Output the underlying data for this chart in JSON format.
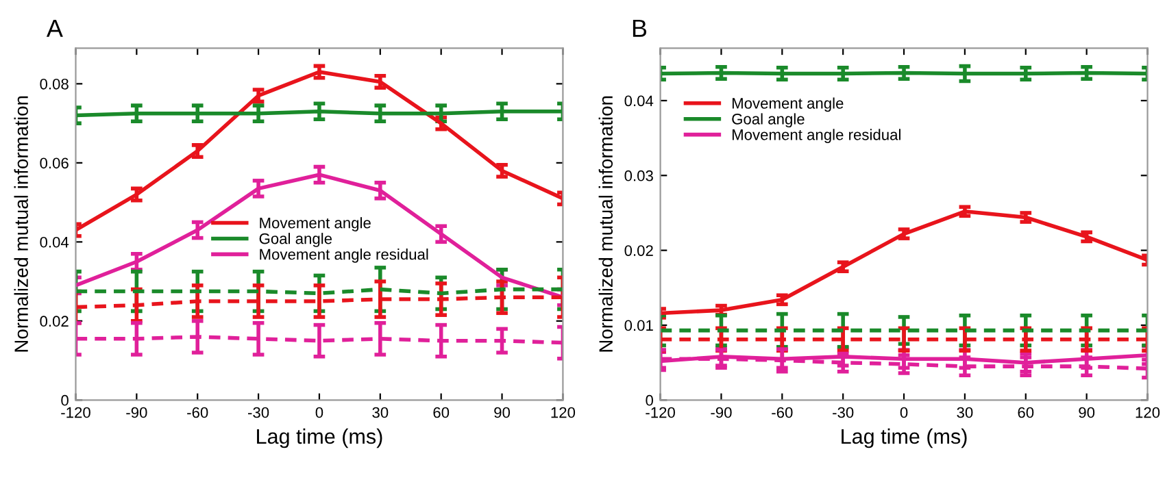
{
  "chart_data": [
    {
      "type": "line",
      "title": "A",
      "xlabel": "Lag time (ms)",
      "ylabel": "Normalized mutual information",
      "x": [
        -120,
        -90,
        -60,
        -30,
        0,
        30,
        60,
        90,
        120
      ],
      "xlim": [
        -120,
        120
      ],
      "xticks": [
        -120,
        -90,
        -60,
        -30,
        0,
        30,
        60,
        90,
        120
      ],
      "ylim": [
        0,
        0.089
      ],
      "yticks": [
        0,
        0.02,
        0.04,
        0.06,
        0.08
      ],
      "grid": false,
      "legend": "center",
      "marker": "none",
      "series": [
        {
          "name": "Movement angle",
          "color": "#e8141c",
          "line_style": "solid",
          "values": [
            0.043,
            0.052,
            0.063,
            0.077,
            0.083,
            0.0805,
            0.07,
            0.058,
            0.051
          ],
          "errors": [
            0.0015,
            0.0015,
            0.0015,
            0.0015,
            0.0015,
            0.0015,
            0.0015,
            0.0015,
            0.0015
          ]
        },
        {
          "name": "Goal angle",
          "color": "#1a8a2a",
          "line_style": "solid",
          "values": [
            0.072,
            0.0725,
            0.0725,
            0.0725,
            0.073,
            0.0725,
            0.0725,
            0.073,
            0.073
          ],
          "errors": [
            0.002,
            0.002,
            0.002,
            0.002,
            0.002,
            0.002,
            0.002,
            0.002,
            0.002
          ]
        },
        {
          "name": "Movement angle residual",
          "color": "#e0209a",
          "line_style": "solid",
          "values": [
            0.029,
            0.035,
            0.043,
            0.0535,
            0.057,
            0.053,
            0.042,
            0.031,
            0.026
          ],
          "errors": [
            0.002,
            0.002,
            0.002,
            0.002,
            0.002,
            0.002,
            0.002,
            0.002,
            0.002
          ]
        },
        {
          "color": "#1a8a2a",
          "line_style": "dashed",
          "values": [
            0.0275,
            0.0275,
            0.0275,
            0.0275,
            0.027,
            0.028,
            0.027,
            0.028,
            0.028
          ],
          "errors": [
            0.005,
            0.005,
            0.005,
            0.005,
            0.0045,
            0.0055,
            0.004,
            0.005,
            0.005
          ]
        },
        {
          "color": "#e8141c",
          "line_style": "dashed",
          "values": [
            0.0235,
            0.024,
            0.025,
            0.025,
            0.025,
            0.0255,
            0.0255,
            0.026,
            0.026
          ],
          "errors": [
            0.004,
            0.004,
            0.004,
            0.004,
            0.004,
            0.0045,
            0.004,
            0.004,
            0.005
          ]
        },
        {
          "color": "#e0209a",
          "line_style": "dashed",
          "values": [
            0.0155,
            0.0155,
            0.016,
            0.0155,
            0.015,
            0.0155,
            0.015,
            0.015,
            0.0145
          ],
          "errors": [
            0.004,
            0.004,
            0.004,
            0.004,
            0.004,
            0.004,
            0.004,
            0.003,
            0.004
          ]
        }
      ]
    },
    {
      "type": "line",
      "title": "B",
      "xlabel": "Lag time (ms)",
      "ylabel": "Normalized mutual information",
      "x": [
        -120,
        -90,
        -60,
        -30,
        0,
        30,
        60,
        90,
        120
      ],
      "xlim": [
        -120,
        120
      ],
      "xticks": [
        -120,
        -90,
        -60,
        -30,
        0,
        30,
        60,
        90,
        120
      ],
      "ylim": [
        0,
        0.047
      ],
      "yticks": [
        0,
        0.01,
        0.02,
        0.03,
        0.04
      ],
      "grid": false,
      "legend": "upper left",
      "marker": "none",
      "series": [
        {
          "name": "Movement angle",
          "color": "#e8141c",
          "line_style": "solid",
          "values": [
            0.0116,
            0.012,
            0.0134,
            0.0178,
            0.0222,
            0.0252,
            0.0244,
            0.0218,
            0.0187
          ],
          "errors": [
            0.0006,
            0.0006,
            0.0006,
            0.0006,
            0.0006,
            0.0006,
            0.0006,
            0.0006,
            0.0006
          ]
        },
        {
          "name": "Goal angle",
          "color": "#1a8a2a",
          "line_style": "solid",
          "values": [
            0.0436,
            0.0437,
            0.0436,
            0.0436,
            0.0437,
            0.0436,
            0.0436,
            0.0437,
            0.0436
          ],
          "errors": [
            0.0008,
            0.0008,
            0.0008,
            0.0008,
            0.0008,
            0.001,
            0.0008,
            0.0008,
            0.0008
          ]
        },
        {
          "name": "Movement angle residual",
          "color": "#e0209a",
          "line_style": "solid",
          "values": [
            0.0052,
            0.0058,
            0.0055,
            0.0058,
            0.0055,
            0.0055,
            0.005,
            0.0055,
            0.006
          ],
          "errors": [
            0.0012,
            0.0012,
            0.0012,
            0.0012,
            0.0012,
            0.0012,
            0.0012,
            0.0012,
            0.0012
          ]
        },
        {
          "color": "#1a8a2a",
          "line_style": "dashed",
          "values": [
            0.0093,
            0.0093,
            0.0093,
            0.0093,
            0.0093,
            0.0093,
            0.0093,
            0.0093,
            0.0093
          ],
          "errors": [
            0.002,
            0.002,
            0.0022,
            0.0022,
            0.0018,
            0.002,
            0.002,
            0.002,
            0.002
          ]
        },
        {
          "color": "#e8141c",
          "line_style": "dashed",
          "values": [
            0.0081,
            0.0081,
            0.0081,
            0.0081,
            0.0081,
            0.0081,
            0.0081,
            0.0081,
            0.0081
          ],
          "errors": [
            0.0015,
            0.0015,
            0.0015,
            0.0015,
            0.0015,
            0.0015,
            0.0015,
            0.0015,
            0.0015
          ]
        },
        {
          "color": "#e0209a",
          "line_style": "dashed",
          "values": [
            0.0055,
            0.0055,
            0.0053,
            0.005,
            0.0048,
            0.0045,
            0.0045,
            0.0045,
            0.0042
          ],
          "errors": [
            0.0012,
            0.0012,
            0.0015,
            0.0012,
            0.0012,
            0.0012,
            0.0012,
            0.0012,
            0.0012
          ]
        }
      ]
    }
  ]
}
